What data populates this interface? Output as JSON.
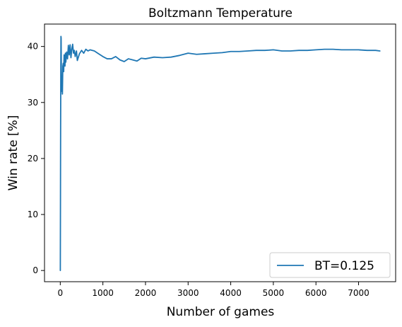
{
  "chart_data": {
    "type": "line",
    "title": "Boltzmann Temperature",
    "xlabel": "Number of games",
    "ylabel": "Win rate [%]",
    "xlim": [
      -370,
      7870
    ],
    "ylim": [
      -2,
      44
    ],
    "xticks": [
      0,
      1000,
      2000,
      3000,
      4000,
      5000,
      6000,
      7000
    ],
    "yticks": [
      0,
      10,
      20,
      30,
      40
    ],
    "grid": false,
    "legend_position": "lower-right",
    "series": [
      {
        "name": "BT=0.125",
        "color": "#1f77b4",
        "x": [
          1,
          8,
          12,
          16,
          20,
          25,
          30,
          40,
          50,
          60,
          70,
          80,
          90,
          100,
          110,
          120,
          130,
          150,
          170,
          190,
          210,
          230,
          250,
          270,
          290,
          310,
          330,
          350,
          380,
          400,
          450,
          500,
          550,
          600,
          650,
          700,
          800,
          900,
          1000,
          1100,
          1200,
          1300,
          1400,
          1500,
          1600,
          1700,
          1800,
          1900,
          2000,
          2200,
          2400,
          2600,
          2800,
          3000,
          3200,
          3400,
          3600,
          3800,
          4000,
          4200,
          4400,
          4600,
          4800,
          5000,
          5200,
          5400,
          5600,
          5800,
          6000,
          6200,
          6400,
          6600,
          6800,
          7000,
          7200,
          7400,
          7500
        ],
        "y": [
          0,
          25,
          35,
          41.8,
          41.5,
          36,
          32,
          33.5,
          31.5,
          36.5,
          37,
          35.5,
          38.5,
          37.5,
          36.5,
          38.8,
          37.2,
          39,
          37.8,
          40.2,
          38.5,
          40.3,
          38,
          39.5,
          40.4,
          38.8,
          39.3,
          38.2,
          39.2,
          37.5,
          38.7,
          39.3,
          38.8,
          39.5,
          39.2,
          39.4,
          39.2,
          38.7,
          38.2,
          37.8,
          37.8,
          38.2,
          37.6,
          37.3,
          37.8,
          37.6,
          37.4,
          37.9,
          37.8,
          38.1,
          38,
          38.1,
          38.4,
          38.8,
          38.6,
          38.7,
          38.8,
          38.9,
          39.1,
          39.1,
          39.2,
          39.3,
          39.3,
          39.4,
          39.2,
          39.2,
          39.3,
          39.3,
          39.4,
          39.5,
          39.5,
          39.4,
          39.4,
          39.4,
          39.3,
          39.3,
          39.2
        ]
      }
    ]
  }
}
